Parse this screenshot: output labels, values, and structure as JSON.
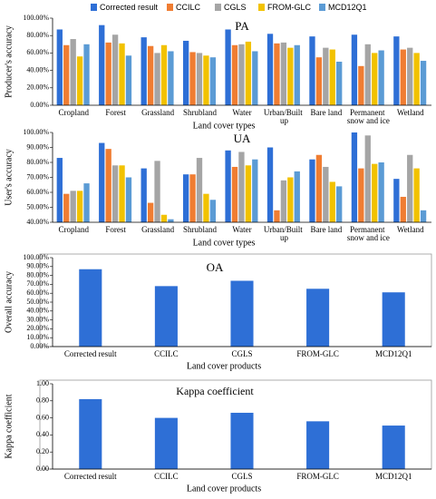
{
  "chart_data": [
    {
      "type": "bar",
      "title": "PA",
      "y_label": "Producer's accuracy",
      "x_label": "Land cover types",
      "legend": "top",
      "categories": [
        "Cropland",
        "Forest",
        "Grassland",
        "Shrubland",
        "Water",
        "Urban/Built up",
        "Bare land",
        "Permanent snow and ice",
        "Wetland"
      ],
      "series": [
        {
          "name": "Corrected result",
          "color": "#2e6fd6",
          "values": [
            87,
            92,
            78,
            74,
            87,
            82,
            79,
            81,
            79
          ]
        },
        {
          "name": "CCILC",
          "color": "#f07d32",
          "values": [
            69,
            72,
            68,
            61,
            69,
            71,
            55,
            45,
            64
          ]
        },
        {
          "name": "CGLS",
          "color": "#a5a5a5",
          "values": [
            76,
            81,
            60,
            60,
            70,
            72,
            66,
            70,
            66
          ]
        },
        {
          "name": "FROM-GLC",
          "color": "#f2c200",
          "values": [
            56,
            71,
            69,
            57,
            73,
            66,
            64,
            60,
            60
          ]
        },
        {
          "name": "MCD12Q1",
          "color": "#5b9bd5",
          "values": [
            70,
            57,
            62,
            55,
            62,
            69,
            50,
            63,
            51
          ]
        }
      ],
      "ylim": [
        0,
        100
      ],
      "yticks": [
        {
          "value": 0,
          "label": "0.00%"
        },
        {
          "value": 20,
          "label": "20.00%"
        },
        {
          "value": 40,
          "label": "40.00%"
        },
        {
          "value": 60,
          "label": "60.00%"
        },
        {
          "value": 80,
          "label": "80.00%"
        },
        {
          "value": 100,
          "label": "100.00%"
        }
      ]
    },
    {
      "type": "bar",
      "title": "UA",
      "y_label": "User's accuracy",
      "x_label": "Land cover types",
      "categories": [
        "Cropland",
        "Forest",
        "Grassland",
        "Shrubland",
        "Water",
        "Urban/Built up",
        "Bare land",
        "Permanent snow and ice",
        "Wetland"
      ],
      "series": [
        {
          "name": "Corrected result",
          "color": "#2e6fd6",
          "values": [
            83,
            93,
            76,
            72,
            88,
            90,
            82,
            100,
            69
          ]
        },
        {
          "name": "CCILC",
          "color": "#f07d32",
          "values": [
            59,
            89,
            53,
            72,
            77,
            48,
            85,
            76,
            57
          ]
        },
        {
          "name": "CGLS",
          "color": "#a5a5a5",
          "values": [
            61,
            78,
            81,
            83,
            87,
            68,
            77,
            98,
            85
          ]
        },
        {
          "name": "FROM-GLC",
          "color": "#f2c200",
          "values": [
            61,
            78,
            45,
            59,
            78,
            70,
            67,
            79,
            76
          ]
        },
        {
          "name": "MCD12Q1",
          "color": "#5b9bd5",
          "values": [
            66,
            70,
            42,
            55,
            82,
            74,
            64,
            80,
            48
          ]
        }
      ],
      "ylim": [
        40,
        100
      ],
      "yticks": [
        {
          "value": 40,
          "label": "40.00%"
        },
        {
          "value": 50,
          "label": "50.00%"
        },
        {
          "value": 60,
          "label": "60.00%"
        },
        {
          "value": 70,
          "label": "70.00%"
        },
        {
          "value": 80,
          "label": "80.00%"
        },
        {
          "value": 90,
          "label": "90.00%"
        },
        {
          "value": 100,
          "label": "100.00%"
        }
      ]
    },
    {
      "type": "bar",
      "title": "OA",
      "y_label": "Overall accuracy",
      "x_label": "Land cover products",
      "categories": [
        "Corrected result",
        "CCILC",
        "CGLS",
        "FROM-GLC",
        "MCD12Q1"
      ],
      "series": [
        {
          "name": "OA",
          "color": "#2e6fd6",
          "values": [
            87,
            68,
            74,
            65,
            61
          ]
        }
      ],
      "ylim": [
        0,
        100
      ],
      "yticks": [
        {
          "value": 0,
          "label": "0.00%"
        },
        {
          "value": 10,
          "label": "10.00%"
        },
        {
          "value": 20,
          "label": "20.00%"
        },
        {
          "value": 30,
          "label": "30.00%"
        },
        {
          "value": 40,
          "label": "40.00%"
        },
        {
          "value": 50,
          "label": "50.00%"
        },
        {
          "value": 60,
          "label": "60.00%"
        },
        {
          "value": 70,
          "label": "70.00%"
        },
        {
          "value": 80,
          "label": "80.00%"
        },
        {
          "value": 90,
          "label": "90.00%"
        },
        {
          "value": 100,
          "label": "100.00%"
        }
      ]
    },
    {
      "type": "bar",
      "title": "Kappa coefficient",
      "y_label": "Kappa coefficient",
      "x_label": "Land cover products",
      "categories": [
        "Corrected result",
        "CCILC",
        "CGLS",
        "FROM-GLC",
        "MCD12Q1"
      ],
      "series": [
        {
          "name": "Kappa coefficient",
          "color": "#2e6fd6",
          "values": [
            0.82,
            0.6,
            0.66,
            0.56,
            0.51
          ]
        }
      ],
      "ylim": [
        0,
        1
      ],
      "yticks": [
        {
          "value": 0,
          "label": "0.00"
        },
        {
          "value": 0.2,
          "label": "0.20"
        },
        {
          "value": 0.4,
          "label": "0.40"
        },
        {
          "value": 0.6,
          "label": "0.60"
        },
        {
          "value": 0.8,
          "label": "0.80"
        },
        {
          "value": 1,
          "label": "1.00"
        }
      ]
    }
  ]
}
